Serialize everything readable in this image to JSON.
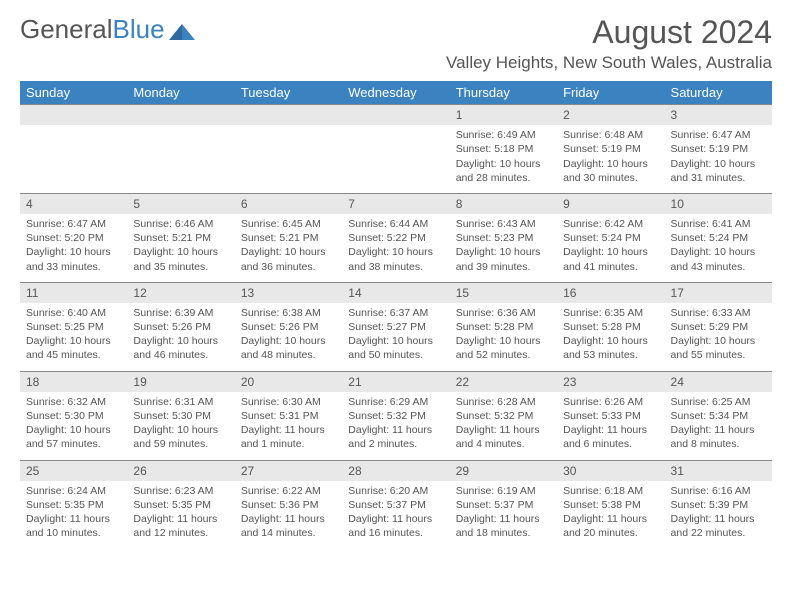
{
  "brand": {
    "part1": "General",
    "part2": "Blue"
  },
  "title": "August 2024",
  "location": "Valley Heights, New South Wales, Australia",
  "colors": {
    "header_bg": "#3b83c0",
    "header_text": "#ffffff",
    "daynum_bg": "#e8e8e8",
    "text": "#555555",
    "rule": "#888888",
    "page_bg": "#ffffff"
  },
  "font": {
    "family": "Arial",
    "title_size": 32,
    "location_size": 17,
    "th_size": 13,
    "body_size": 10.5
  },
  "dayNames": [
    "Sunday",
    "Monday",
    "Tuesday",
    "Wednesday",
    "Thursday",
    "Friday",
    "Saturday"
  ],
  "weeks": [
    [
      null,
      null,
      null,
      null,
      {
        "n": "1",
        "sunrise": "Sunrise: 6:49 AM",
        "sunset": "Sunset: 5:18 PM",
        "daylight": "Daylight: 10 hours and 28 minutes."
      },
      {
        "n": "2",
        "sunrise": "Sunrise: 6:48 AM",
        "sunset": "Sunset: 5:19 PM",
        "daylight": "Daylight: 10 hours and 30 minutes."
      },
      {
        "n": "3",
        "sunrise": "Sunrise: 6:47 AM",
        "sunset": "Sunset: 5:19 PM",
        "daylight": "Daylight: 10 hours and 31 minutes."
      }
    ],
    [
      {
        "n": "4",
        "sunrise": "Sunrise: 6:47 AM",
        "sunset": "Sunset: 5:20 PM",
        "daylight": "Daylight: 10 hours and 33 minutes."
      },
      {
        "n": "5",
        "sunrise": "Sunrise: 6:46 AM",
        "sunset": "Sunset: 5:21 PM",
        "daylight": "Daylight: 10 hours and 35 minutes."
      },
      {
        "n": "6",
        "sunrise": "Sunrise: 6:45 AM",
        "sunset": "Sunset: 5:21 PM",
        "daylight": "Daylight: 10 hours and 36 minutes."
      },
      {
        "n": "7",
        "sunrise": "Sunrise: 6:44 AM",
        "sunset": "Sunset: 5:22 PM",
        "daylight": "Daylight: 10 hours and 38 minutes."
      },
      {
        "n": "8",
        "sunrise": "Sunrise: 6:43 AM",
        "sunset": "Sunset: 5:23 PM",
        "daylight": "Daylight: 10 hours and 39 minutes."
      },
      {
        "n": "9",
        "sunrise": "Sunrise: 6:42 AM",
        "sunset": "Sunset: 5:24 PM",
        "daylight": "Daylight: 10 hours and 41 minutes."
      },
      {
        "n": "10",
        "sunrise": "Sunrise: 6:41 AM",
        "sunset": "Sunset: 5:24 PM",
        "daylight": "Daylight: 10 hours and 43 minutes."
      }
    ],
    [
      {
        "n": "11",
        "sunrise": "Sunrise: 6:40 AM",
        "sunset": "Sunset: 5:25 PM",
        "daylight": "Daylight: 10 hours and 45 minutes."
      },
      {
        "n": "12",
        "sunrise": "Sunrise: 6:39 AM",
        "sunset": "Sunset: 5:26 PM",
        "daylight": "Daylight: 10 hours and 46 minutes."
      },
      {
        "n": "13",
        "sunrise": "Sunrise: 6:38 AM",
        "sunset": "Sunset: 5:26 PM",
        "daylight": "Daylight: 10 hours and 48 minutes."
      },
      {
        "n": "14",
        "sunrise": "Sunrise: 6:37 AM",
        "sunset": "Sunset: 5:27 PM",
        "daylight": "Daylight: 10 hours and 50 minutes."
      },
      {
        "n": "15",
        "sunrise": "Sunrise: 6:36 AM",
        "sunset": "Sunset: 5:28 PM",
        "daylight": "Daylight: 10 hours and 52 minutes."
      },
      {
        "n": "16",
        "sunrise": "Sunrise: 6:35 AM",
        "sunset": "Sunset: 5:28 PM",
        "daylight": "Daylight: 10 hours and 53 minutes."
      },
      {
        "n": "17",
        "sunrise": "Sunrise: 6:33 AM",
        "sunset": "Sunset: 5:29 PM",
        "daylight": "Daylight: 10 hours and 55 minutes."
      }
    ],
    [
      {
        "n": "18",
        "sunrise": "Sunrise: 6:32 AM",
        "sunset": "Sunset: 5:30 PM",
        "daylight": "Daylight: 10 hours and 57 minutes."
      },
      {
        "n": "19",
        "sunrise": "Sunrise: 6:31 AM",
        "sunset": "Sunset: 5:30 PM",
        "daylight": "Daylight: 10 hours and 59 minutes."
      },
      {
        "n": "20",
        "sunrise": "Sunrise: 6:30 AM",
        "sunset": "Sunset: 5:31 PM",
        "daylight": "Daylight: 11 hours and 1 minute."
      },
      {
        "n": "21",
        "sunrise": "Sunrise: 6:29 AM",
        "sunset": "Sunset: 5:32 PM",
        "daylight": "Daylight: 11 hours and 2 minutes."
      },
      {
        "n": "22",
        "sunrise": "Sunrise: 6:28 AM",
        "sunset": "Sunset: 5:32 PM",
        "daylight": "Daylight: 11 hours and 4 minutes."
      },
      {
        "n": "23",
        "sunrise": "Sunrise: 6:26 AM",
        "sunset": "Sunset: 5:33 PM",
        "daylight": "Daylight: 11 hours and 6 minutes."
      },
      {
        "n": "24",
        "sunrise": "Sunrise: 6:25 AM",
        "sunset": "Sunset: 5:34 PM",
        "daylight": "Daylight: 11 hours and 8 minutes."
      }
    ],
    [
      {
        "n": "25",
        "sunrise": "Sunrise: 6:24 AM",
        "sunset": "Sunset: 5:35 PM",
        "daylight": "Daylight: 11 hours and 10 minutes."
      },
      {
        "n": "26",
        "sunrise": "Sunrise: 6:23 AM",
        "sunset": "Sunset: 5:35 PM",
        "daylight": "Daylight: 11 hours and 12 minutes."
      },
      {
        "n": "27",
        "sunrise": "Sunrise: 6:22 AM",
        "sunset": "Sunset: 5:36 PM",
        "daylight": "Daylight: 11 hours and 14 minutes."
      },
      {
        "n": "28",
        "sunrise": "Sunrise: 6:20 AM",
        "sunset": "Sunset: 5:37 PM",
        "daylight": "Daylight: 11 hours and 16 minutes."
      },
      {
        "n": "29",
        "sunrise": "Sunrise: 6:19 AM",
        "sunset": "Sunset: 5:37 PM",
        "daylight": "Daylight: 11 hours and 18 minutes."
      },
      {
        "n": "30",
        "sunrise": "Sunrise: 6:18 AM",
        "sunset": "Sunset: 5:38 PM",
        "daylight": "Daylight: 11 hours and 20 minutes."
      },
      {
        "n": "31",
        "sunrise": "Sunrise: 6:16 AM",
        "sunset": "Sunset: 5:39 PM",
        "daylight": "Daylight: 11 hours and 22 minutes."
      }
    ]
  ]
}
